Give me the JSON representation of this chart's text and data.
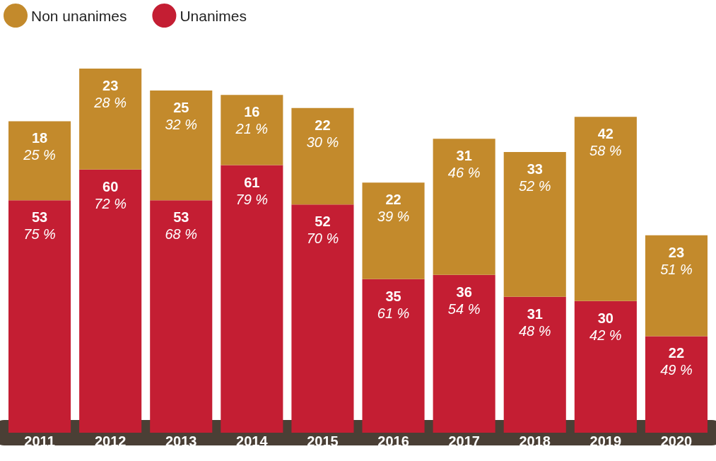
{
  "chart_data": {
    "type": "bar",
    "stacked": true,
    "categories": [
      "2011",
      "2012",
      "2013",
      "2014",
      "2015",
      "2016",
      "2017",
      "2018",
      "2019",
      "2020"
    ],
    "series": [
      {
        "name": "Unanimes",
        "color": "#c41e33",
        "values": [
          53,
          60,
          53,
          61,
          52,
          35,
          36,
          31,
          30,
          22
        ],
        "value_labels": [
          "53 75 %",
          "60 72 %",
          "53 68 %",
          "61 79 %",
          "52 70 %",
          "35 61 %",
          "36 54 %",
          "31 48 %",
          "30 42 %",
          "22 49 %"
        ]
      },
      {
        "name": "Non unanimes",
        "color": "#c38a2c",
        "values": [
          18,
          23,
          25,
          16,
          22,
          22,
          31,
          33,
          42,
          23
        ],
        "value_labels": [
          "18 25 %",
          "23 28 %",
          "25 32 %",
          "16 21 %",
          "22 30 %",
          "22 39 %",
          "31 46 %",
          "33 52 %",
          "42 58 %",
          "23 51 %"
        ]
      }
    ],
    "legend": "top left"
  }
}
